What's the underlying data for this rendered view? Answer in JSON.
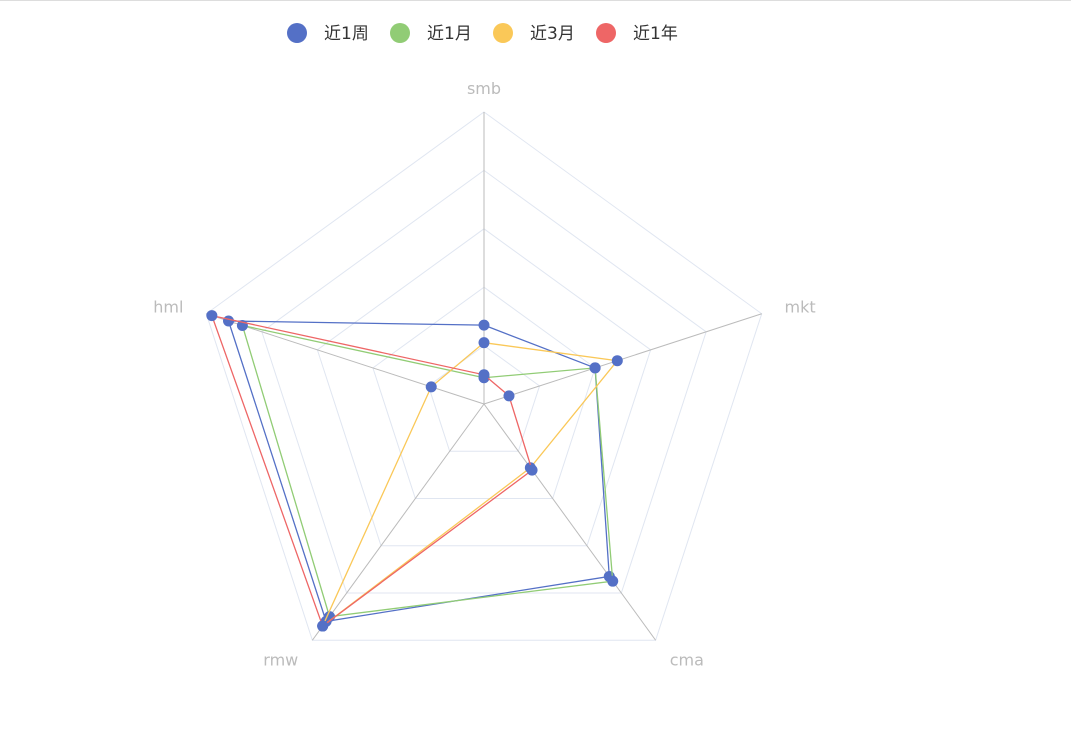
{
  "chart_data": {
    "type": "radar",
    "indicators": [
      "smb",
      "mkt",
      "cma",
      "rmw",
      "hml"
    ],
    "range": [
      0,
      1
    ],
    "split_levels": 5,
    "legend_position": "top-center",
    "series": [
      {
        "name": "近1周",
        "color": "#5470c6",
        "values": [
          0.27,
          0.4,
          0.73,
          0.92,
          0.92
        ]
      },
      {
        "name": "近1月",
        "color": "#91cc75",
        "values": [
          0.09,
          0.4,
          0.75,
          0.9,
          0.87
        ]
      },
      {
        "name": "近3月",
        "color": "#fac858",
        "values": [
          0.21,
          0.48,
          0.27,
          0.94,
          0.19
        ]
      },
      {
        "name": "近1年",
        "color": "#ee6666",
        "values": [
          0.1,
          0.09,
          0.28,
          0.94,
          0.98
        ]
      }
    ]
  }
}
